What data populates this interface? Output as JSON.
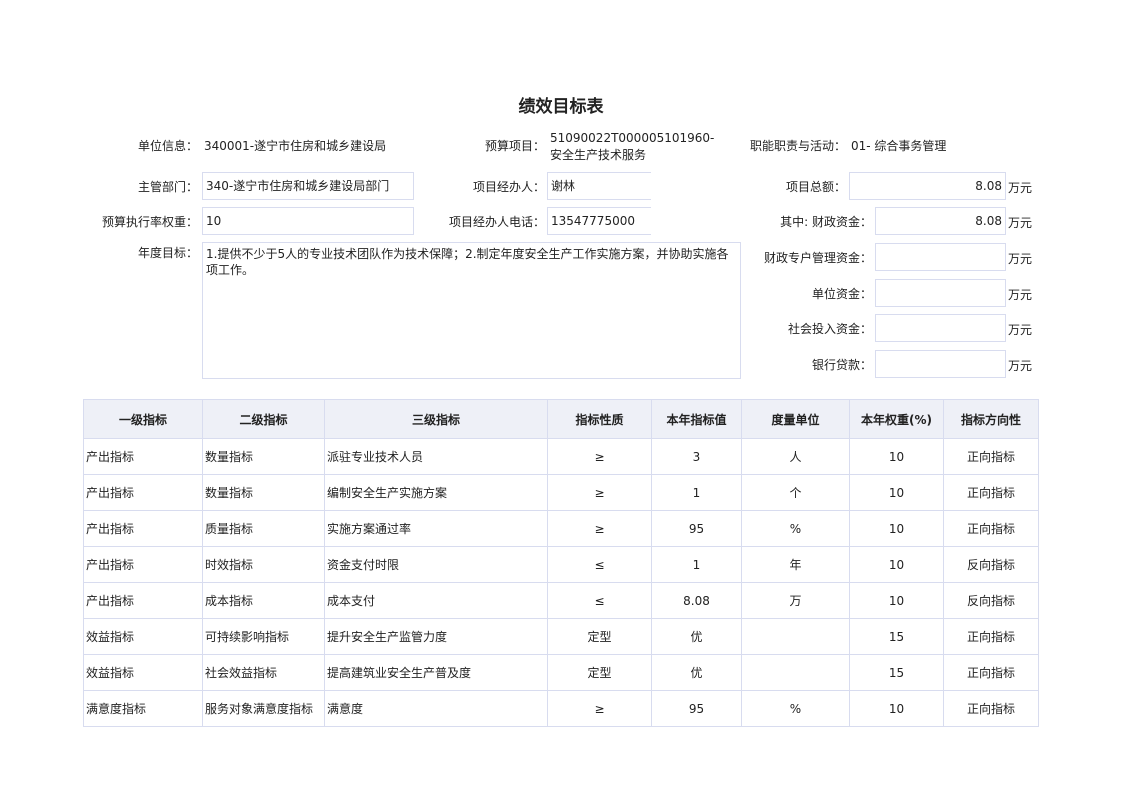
{
  "title": "绩效目标表",
  "form": {
    "unit_label": "单位信息：",
    "unit_value": "340001-遂宁市住房和城乡建设局",
    "budget_project_label": "预算项目：",
    "budget_project_line1": "51090022T000005101960-",
    "budget_project_line2": "安全生产技术服务",
    "function_label": "职能职责与活动：",
    "function_value": "01- 综合事务管理",
    "dept_label": "主管部门：",
    "dept_value": "340-遂宁市住房和城乡建设局部门",
    "manager_label": "项目经办人：",
    "manager_value": "谢林",
    "total_label": "项目总额：",
    "total_value": "8.08",
    "weight_label": "预算执行率权重：",
    "weight_value": "10",
    "phone_label": "项目经办人电话：",
    "phone_value": "13547775000",
    "fiscal_label": "其中:  财政资金：",
    "fiscal_value": "8.08",
    "goal_label": "年度目标：",
    "goal_value": "1.提供不少于5人的专业技术团队作为技术保障；2.制定年度安全生产工作实施方案，并协助实施各项工作。",
    "special_label": "财政专户管理资金：",
    "special_value": "",
    "unitfund_label": "单位资金：",
    "unitfund_value": "",
    "social_label": "社会投入资金：",
    "social_value": "",
    "loan_label": "银行贷款：",
    "loan_value": "",
    "unit": "万元"
  },
  "table": {
    "headers": [
      "一级指标",
      "二级指标",
      "三级指标",
      "指标性质",
      "本年指标值",
      "度量单位",
      "本年权重(%)",
      "指标方向性"
    ],
    "rows": [
      [
        "产出指标",
        "数量指标",
        "派驻专业技术人员",
        "≥",
        "3",
        "人",
        "10",
        "正向指标"
      ],
      [
        "产出指标",
        "数量指标",
        "编制安全生产实施方案",
        "≥",
        "1",
        "个",
        "10",
        "正向指标"
      ],
      [
        "产出指标",
        "质量指标",
        "实施方案通过率",
        "≥",
        "95",
        "%",
        "10",
        "正向指标"
      ],
      [
        "产出指标",
        "时效指标",
        "资金支付时限",
        "≤",
        "1",
        "年",
        "10",
        "反向指标"
      ],
      [
        "产出指标",
        "成本指标",
        "成本支付",
        "≤",
        "8.08",
        "万",
        "10",
        "反向指标"
      ],
      [
        "效益指标",
        "可持续影响指标",
        "提升安全生产监管力度",
        "定型",
        "优",
        "",
        "15",
        "正向指标"
      ],
      [
        "效益指标",
        "社会效益指标",
        "提高建筑业安全生产普及度",
        "定型",
        "优",
        "",
        "15",
        "正向指标"
      ],
      [
        "满意度指标",
        "服务对象满意度指标",
        "满意度",
        "≥",
        "95",
        "%",
        "10",
        "正向指标"
      ]
    ]
  }
}
